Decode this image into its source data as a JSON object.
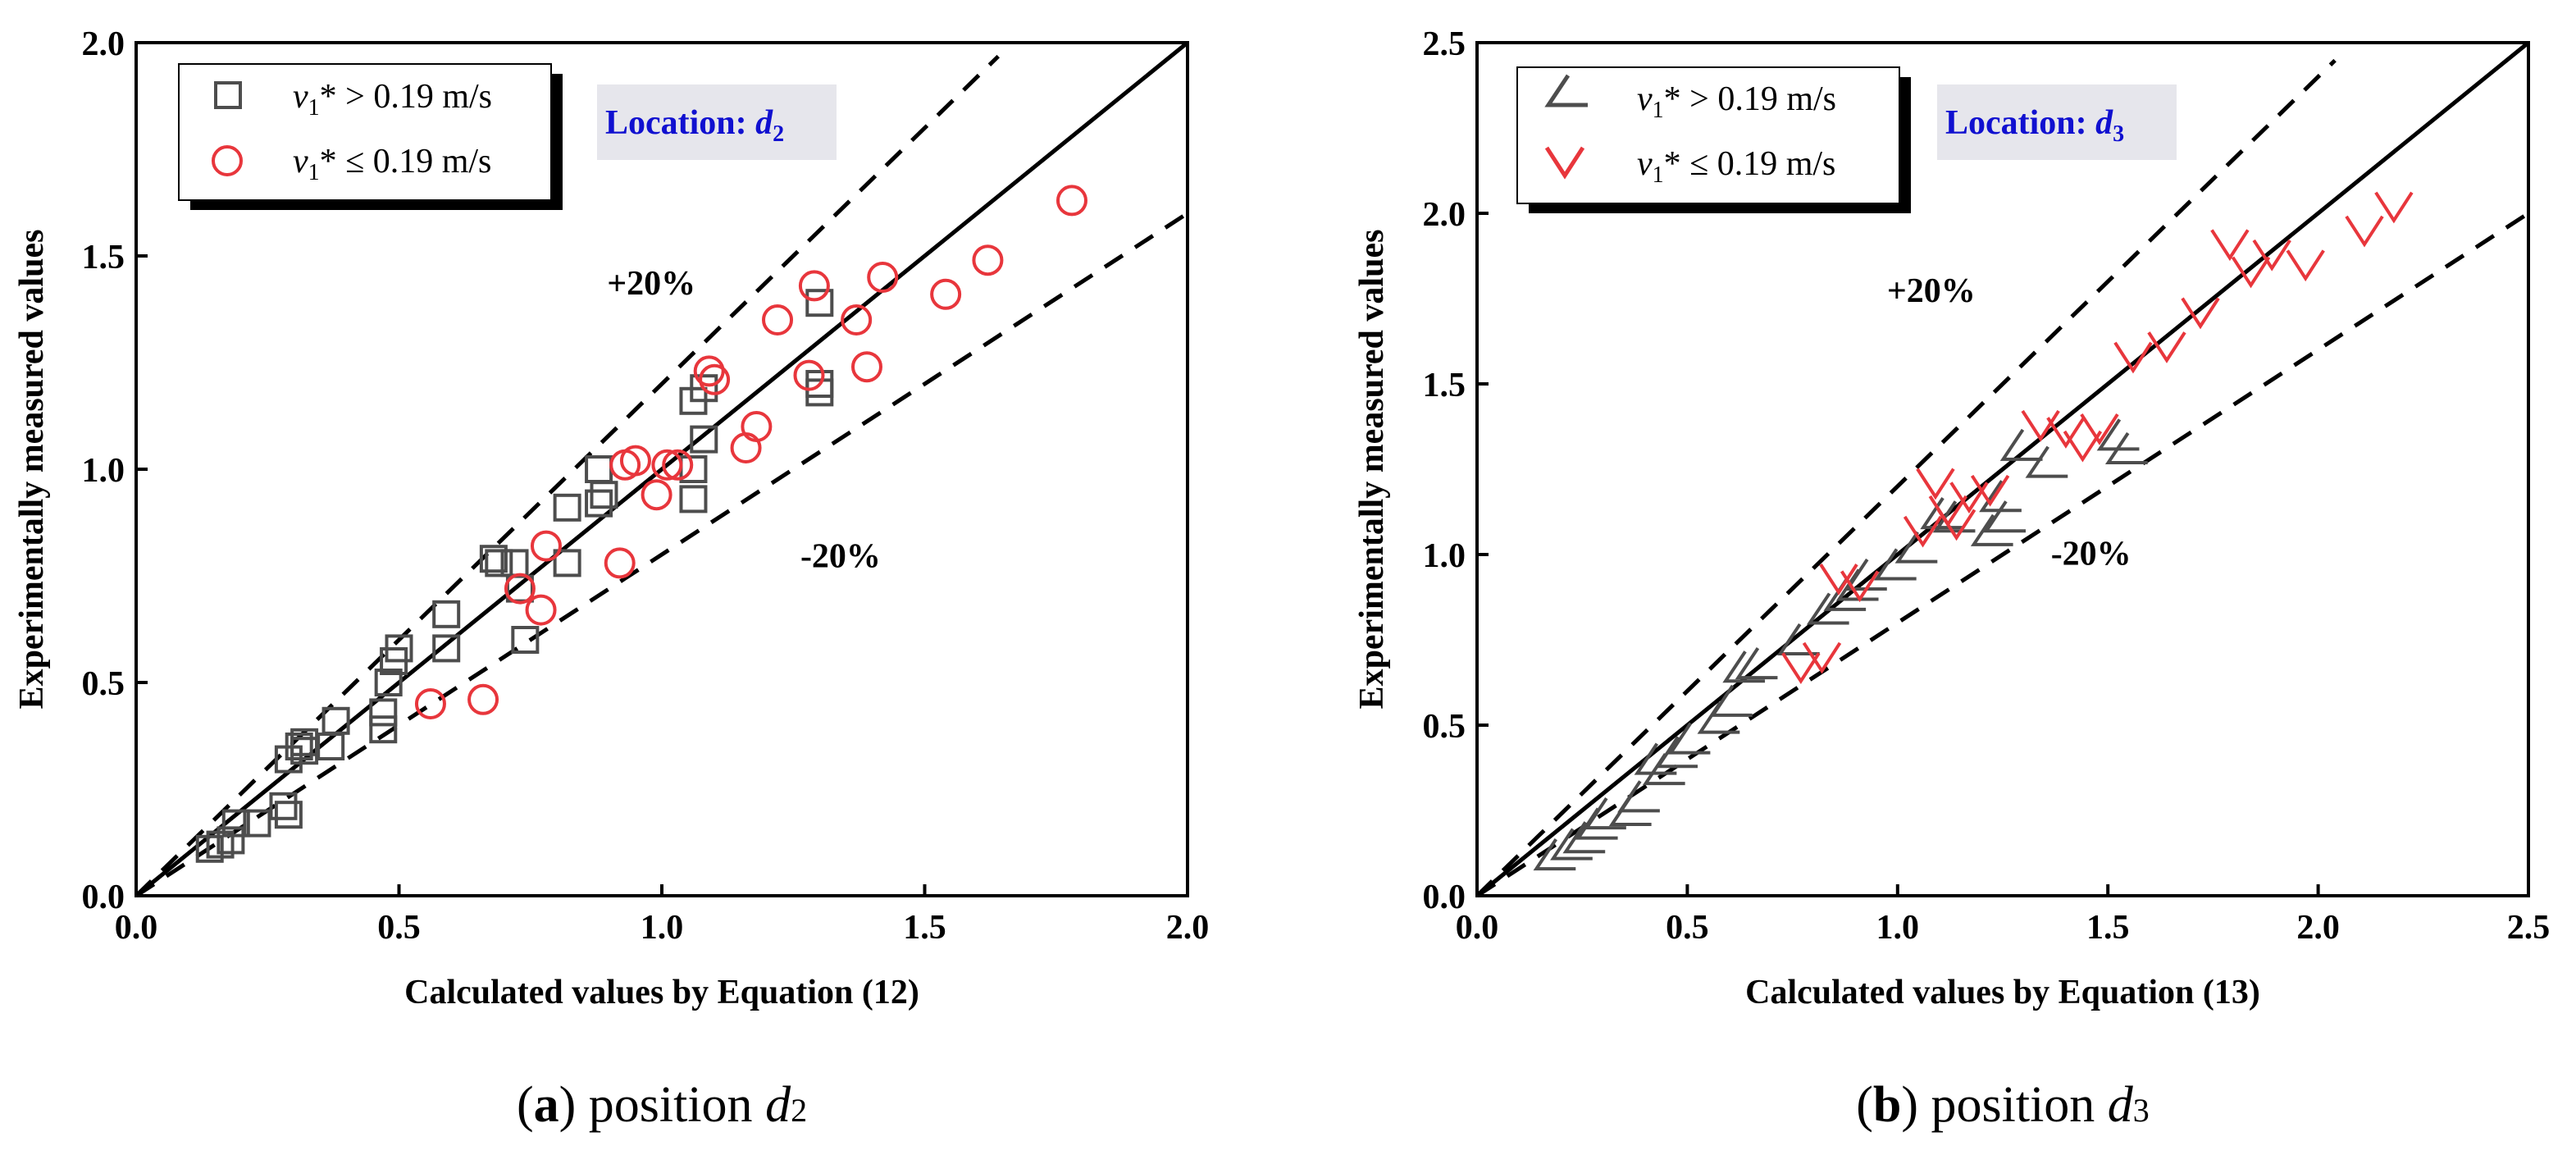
{
  "chart_data": [
    {
      "type": "scatter",
      "panel_label": "a",
      "caption": {
        "label": "a",
        "text": "position",
        "var": "d",
        "sub": "2"
      },
      "xlabel": "Calculated values by Equation (12)",
      "ylabel": "Experimentally measured values",
      "xlim": [
        0,
        2.0
      ],
      "ylim": [
        0,
        2.0
      ],
      "xticks": [
        "0.0",
        "0.5",
        "1.0",
        "1.5",
        "2.0"
      ],
      "yticks": [
        "0.0",
        "0.5",
        "1.0",
        "1.5",
        "2.0"
      ],
      "tick_step": 0.5,
      "location": {
        "prefix": "Location: ",
        "var": "d",
        "sub": "2"
      },
      "annotations": [
        {
          "text": "+20%",
          "x": 0.98,
          "y": 1.41
        },
        {
          "text": "-20%",
          "x": 1.34,
          "y": 0.77
        }
      ],
      "lines": {
        "identity": [
          0,
          2.0
        ],
        "upper_factor": 1.2,
        "lower_factor": 0.8,
        "upper_x_end": 1.64
      },
      "legend": {
        "position": "top-left"
      },
      "series": [
        {
          "name_var": "v",
          "name_sub": "1",
          "name_rest": "* > 0.19 m/s",
          "marker": "square",
          "color": "#4d4d4d",
          "points": [
            [
              0.14,
              0.11
            ],
            [
              0.16,
              0.12
            ],
            [
              0.18,
              0.13
            ],
            [
              0.19,
              0.17
            ],
            [
              0.23,
              0.17
            ],
            [
              0.28,
              0.21
            ],
            [
              0.29,
              0.19
            ],
            [
              0.29,
              0.32
            ],
            [
              0.31,
              0.35
            ],
            [
              0.32,
              0.36
            ],
            [
              0.32,
              0.34
            ],
            [
              0.37,
              0.35
            ],
            [
              0.38,
              0.41
            ],
            [
              0.47,
              0.39
            ],
            [
              0.47,
              0.43
            ],
            [
              0.48,
              0.5
            ],
            [
              0.49,
              0.55
            ],
            [
              0.5,
              0.58
            ],
            [
              0.59,
              0.58
            ],
            [
              0.59,
              0.66
            ],
            [
              0.68,
              0.79
            ],
            [
              0.69,
              0.78
            ],
            [
              0.72,
              0.78
            ],
            [
              0.74,
              0.6
            ],
            [
              0.73,
              0.72
            ],
            [
              0.82,
              0.78
            ],
            [
              0.82,
              0.91
            ],
            [
              0.88,
              0.92
            ],
            [
              0.88,
              1.0
            ],
            [
              0.89,
              0.94
            ],
            [
              1.06,
              0.93
            ],
            [
              1.06,
              1.0
            ],
            [
              1.06,
              1.16
            ],
            [
              1.08,
              1.07
            ],
            [
              1.08,
              1.19
            ],
            [
              1.3,
              1.39
            ],
            [
              1.3,
              1.18
            ],
            [
              1.3,
              1.2
            ]
          ]
        },
        {
          "name_var": "v",
          "name_sub": "1",
          "name_rest": "* ≤ 0.19 m/s",
          "marker": "circle",
          "color": "#e8363c",
          "points": [
            [
              0.56,
              0.45
            ],
            [
              0.66,
              0.46
            ],
            [
              0.73,
              0.72
            ],
            [
              0.77,
              0.67
            ],
            [
              0.78,
              0.82
            ],
            [
              0.92,
              0.78
            ],
            [
              0.93,
              1.01
            ],
            [
              0.95,
              1.02
            ],
            [
              0.99,
              0.94
            ],
            [
              1.01,
              1.01
            ],
            [
              1.03,
              1.01
            ],
            [
              1.09,
              1.23
            ],
            [
              1.1,
              1.21
            ],
            [
              1.16,
              1.05
            ],
            [
              1.18,
              1.1
            ],
            [
              1.22,
              1.35
            ],
            [
              1.28,
              1.22
            ],
            [
              1.29,
              1.43
            ],
            [
              1.37,
              1.35
            ],
            [
              1.39,
              1.24
            ],
            [
              1.42,
              1.45
            ],
            [
              1.54,
              1.41
            ],
            [
              1.62,
              1.49
            ],
            [
              1.78,
              1.63
            ]
          ]
        }
      ]
    },
    {
      "type": "scatter",
      "panel_label": "b",
      "caption": {
        "label": "b",
        "text": "position",
        "var": "d",
        "sub": "3"
      },
      "xlabel": "Calculated values by Equation (13)",
      "ylabel": "Experimentally measured values",
      "xlim": [
        0,
        2.5
      ],
      "ylim": [
        0,
        2.5
      ],
      "xticks": [
        "0.0",
        "0.5",
        "1.0",
        "1.5",
        "2.0",
        "2.5"
      ],
      "yticks": [
        "0.0",
        "0.5",
        "1.0",
        "1.5",
        "2.0",
        "2.5"
      ],
      "tick_step": 0.5,
      "location": {
        "prefix": "Location: ",
        "var": "d",
        "sub": "3"
      },
      "annotations": [
        {
          "text": "+20%",
          "x": 1.08,
          "y": 1.74
        },
        {
          "text": "-20%",
          "x": 1.46,
          "y": 0.97
        }
      ],
      "lines": {
        "identity": [
          0,
          2.5
        ],
        "upper_factor": 1.2,
        "lower_factor": 0.8,
        "upper_x_end": 2.04
      },
      "legend": {
        "position": "top-left"
      },
      "series": [
        {
          "name_var": "v",
          "name_sub": "1",
          "name_rest": "* > 0.19 m/s",
          "marker": "angle",
          "color": "#4d4d4d",
          "points": [
            [
              0.18,
              0.12
            ],
            [
              0.22,
              0.15
            ],
            [
              0.25,
              0.17
            ],
            [
              0.28,
              0.21
            ],
            [
              0.3,
              0.24
            ],
            [
              0.36,
              0.25
            ],
            [
              0.38,
              0.29
            ],
            [
              0.42,
              0.4
            ],
            [
              0.44,
              0.37
            ],
            [
              0.47,
              0.42
            ],
            [
              0.5,
              0.46
            ],
            [
              0.57,
              0.52
            ],
            [
              0.6,
              0.57
            ],
            [
              0.63,
              0.67
            ],
            [
              0.66,
              0.68
            ],
            [
              0.76,
              0.75
            ],
            [
              0.83,
              0.84
            ],
            [
              0.87,
              0.88
            ],
            [
              0.9,
              0.91
            ],
            [
              0.92,
              0.94
            ],
            [
              0.99,
              0.97
            ],
            [
              1.04,
              1.02
            ],
            [
              1.1,
              1.12
            ],
            [
              1.13,
              1.11
            ],
            [
              1.22,
              1.07
            ],
            [
              1.24,
              1.17
            ],
            [
              1.25,
              1.11
            ],
            [
              1.29,
              1.32
            ],
            [
              1.35,
              1.27
            ],
            [
              1.52,
              1.35
            ],
            [
              1.54,
              1.31
            ]
          ]
        },
        {
          "name_var": "v",
          "name_sub": "1",
          "name_rest": "* ≤ 0.19 m/s",
          "marker": "v",
          "color": "#e8363c",
          "points": [
            [
              0.77,
              0.67
            ],
            [
              0.82,
              0.7
            ],
            [
              0.86,
              0.93
            ],
            [
              0.91,
              0.91
            ],
            [
              1.06,
              1.07
            ],
            [
              1.09,
              1.21
            ],
            [
              1.12,
              1.13
            ],
            [
              1.14,
              1.09
            ],
            [
              1.17,
              1.17
            ],
            [
              1.22,
              1.19
            ],
            [
              1.34,
              1.38
            ],
            [
              1.4,
              1.36
            ],
            [
              1.44,
              1.32
            ],
            [
              1.48,
              1.37
            ],
            [
              1.56,
              1.58
            ],
            [
              1.64,
              1.61
            ],
            [
              1.72,
              1.71
            ],
            [
              1.79,
              1.91
            ],
            [
              1.84,
              1.83
            ],
            [
              1.89,
              1.88
            ],
            [
              1.97,
              1.85
            ],
            [
              2.11,
              1.95
            ],
            [
              2.18,
              2.02
            ]
          ]
        }
      ]
    }
  ]
}
